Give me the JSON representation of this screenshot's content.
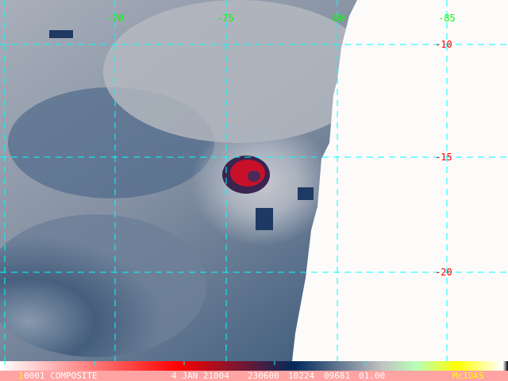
{
  "map": {
    "longitude_labels": [
      "-70",
      "-75",
      "-80",
      "-85"
    ],
    "latitude_labels": [
      "-10",
      "-15",
      "-20"
    ],
    "grid_color": "#00ffff",
    "lon_label_color": "#00ff00",
    "lat_label_color": "#ff0000"
  },
  "colorbar": {
    "stops": [
      "#ffffff",
      "#ff0000",
      "#002a5c",
      "#c0c0c0",
      "#b8ffb8",
      "#ffff00",
      "#ffffff"
    ]
  },
  "info": {
    "frame_prefix": "1",
    "frame_rest": "0001 COMPOSITE",
    "date": "4 JAN 21004",
    "time": "230600",
    "field1": "10224",
    "field2": "09681",
    "field3": "01.00",
    "brand": "McIDAS"
  }
}
